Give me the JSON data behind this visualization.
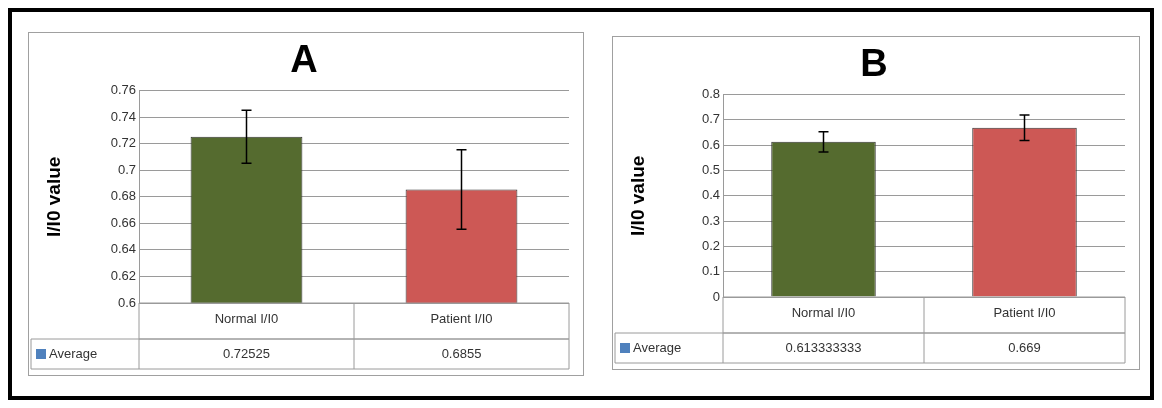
{
  "chart_data": [
    {
      "type": "bar",
      "title": "A",
      "ylabel": "I/I0 value",
      "categories": [
        "Normal I/I0",
        "Patient I/I0"
      ],
      "series": [
        {
          "name": "Average",
          "color": "#4f81bd",
          "colors": [
            "#556b2f",
            "#cd5855"
          ],
          "values": [
            0.72525,
            0.6855
          ],
          "errors": [
            0.02,
            0.03
          ]
        }
      ],
      "ylim": [
        0.6,
        0.76
      ],
      "yticks": [
        0.6,
        0.62,
        0.64,
        0.66,
        0.68,
        0.7,
        0.72,
        0.74,
        0.76
      ],
      "grid": "y",
      "data_labels": true
    },
    {
      "type": "bar",
      "title": "B",
      "ylabel": "I/I0 value",
      "categories": [
        "Normal I/I0",
        "Patient I/I0"
      ],
      "series": [
        {
          "name": "Average",
          "color": "#4f81bd",
          "colors": [
            "#556b2f",
            "#cd5855"
          ],
          "values": [
            0.613333333,
            0.669
          ],
          "errors": [
            0.04,
            0.05
          ]
        }
      ],
      "ylim": [
        0,
        0.8
      ],
      "yticks": [
        0,
        0.1,
        0.2,
        0.3,
        0.4,
        0.5,
        0.6,
        0.7,
        0.8
      ],
      "grid": "y",
      "data_labels": true
    }
  ]
}
